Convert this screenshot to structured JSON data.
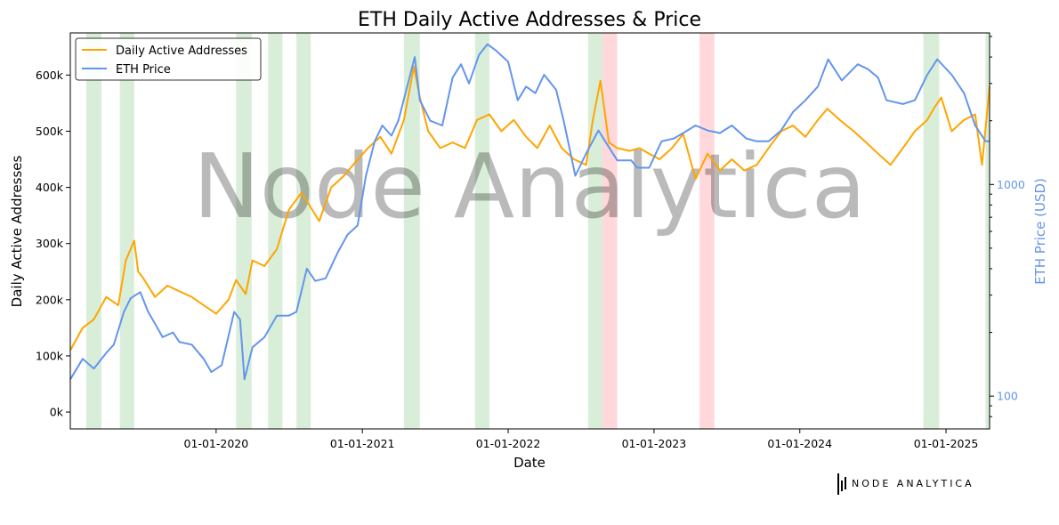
{
  "chart_data": {
    "type": "line",
    "title": "ETH Daily Active Addresses & Price",
    "xlabel": "Date",
    "ylabel": "Daily Active Addresses",
    "y2label": "ETH Price (USD)",
    "y2scale": "log",
    "x_range": [
      "2019-01-01",
      "2025-04-20"
    ],
    "ylim": [
      -30000,
      675000
    ],
    "y2lim": [
      70,
      5200
    ],
    "x_ticks": [
      {
        "date": "2020-01-01",
        "label": "01-01-2020"
      },
      {
        "date": "2021-01-01",
        "label": "01-01-2021"
      },
      {
        "date": "2022-01-01",
        "label": "01-01-2022"
      },
      {
        "date": "2023-01-01",
        "label": "01-01-2023"
      },
      {
        "date": "2024-01-01",
        "label": "01-01-2024"
      },
      {
        "date": "2025-01-01",
        "label": "01-01-2025"
      }
    ],
    "y_ticks": [
      {
        "value": 0,
        "label": "0k"
      },
      {
        "value": 100000,
        "label": "100k"
      },
      {
        "value": 200000,
        "label": "200k"
      },
      {
        "value": 300000,
        "label": "300k"
      },
      {
        "value": 400000,
        "label": "400k"
      },
      {
        "value": 500000,
        "label": "500k"
      },
      {
        "value": 600000,
        "label": "600k"
      }
    ],
    "y2_ticks": [
      {
        "value": 100,
        "label": "100"
      },
      {
        "value": 1000,
        "label": "1000"
      }
    ],
    "grid": false,
    "legend_position": "top-left",
    "watermark": "Node Analytica",
    "colors": {
      "active_addresses": "#FFA500",
      "price": "#6495ED",
      "green_band": "#2e9e2e",
      "red_band": "#ff4d5a"
    },
    "series": [
      {
        "name": "Daily Active Addresses",
        "axis": "left",
        "color": "#FFA500",
        "x": [
          "2019-01-01",
          "2019-02-01",
          "2019-03-01",
          "2019-04-01",
          "2019-05-01",
          "2019-05-20",
          "2019-06-10",
          "2019-06-20",
          "2019-07-01",
          "2019-08-01",
          "2019-09-01",
          "2019-10-01",
          "2019-11-01",
          "2019-12-01",
          "2020-01-01",
          "2020-02-01",
          "2020-02-20",
          "2020-03-15",
          "2020-04-01",
          "2020-05-01",
          "2020-06-01",
          "2020-07-01",
          "2020-08-01",
          "2020-08-20",
          "2020-09-15",
          "2020-10-15",
          "2020-11-15",
          "2020-12-15",
          "2021-01-15",
          "2021-02-15",
          "2021-03-15",
          "2021-04-15",
          "2021-05-10",
          "2021-05-25",
          "2021-06-15",
          "2021-07-15",
          "2021-08-15",
          "2021-09-15",
          "2021-10-15",
          "2021-11-15",
          "2021-12-15",
          "2022-01-15",
          "2022-02-15",
          "2022-03-15",
          "2022-04-15",
          "2022-05-15",
          "2022-06-15",
          "2022-07-15",
          "2022-08-01",
          "2022-08-20",
          "2022-09-10",
          "2022-10-01",
          "2022-11-01",
          "2022-11-25",
          "2022-12-20",
          "2023-01-15",
          "2023-02-15",
          "2023-03-15",
          "2023-04-15",
          "2023-05-15",
          "2023-06-15",
          "2023-07-15",
          "2023-08-15",
          "2023-09-15",
          "2023-10-15",
          "2023-11-15",
          "2023-12-15",
          "2024-01-15",
          "2024-02-15",
          "2024-03-10",
          "2024-04-10",
          "2024-05-15",
          "2024-06-15",
          "2024-07-15",
          "2024-08-15",
          "2024-09-15",
          "2024-10-15",
          "2024-11-15",
          "2024-12-01",
          "2024-12-20",
          "2025-01-15",
          "2025-02-15",
          "2025-03-15",
          "2025-04-01",
          "2025-04-20"
        ],
        "values": [
          110000,
          150000,
          165000,
          205000,
          190000,
          270000,
          305000,
          250000,
          240000,
          205000,
          225000,
          215000,
          205000,
          190000,
          175000,
          200000,
          235000,
          210000,
          270000,
          260000,
          290000,
          360000,
          390000,
          370000,
          340000,
          400000,
          420000,
          445000,
          470000,
          490000,
          460000,
          520000,
          615000,
          560000,
          500000,
          470000,
          480000,
          470000,
          520000,
          530000,
          500000,
          520000,
          490000,
          470000,
          510000,
          470000,
          450000,
          440000,
          520000,
          590000,
          480000,
          470000,
          465000,
          470000,
          460000,
          450000,
          470000,
          495000,
          415000,
          460000,
          430000,
          450000,
          430000,
          440000,
          470000,
          500000,
          510000,
          490000,
          520000,
          540000,
          520000,
          500000,
          480000,
          460000,
          440000,
          470000,
          500000,
          520000,
          540000,
          560000,
          500000,
          520000,
          530000,
          440000,
          580000
        ]
      },
      {
        "name": "ETH Price",
        "axis": "right",
        "color": "#6495ED",
        "x": [
          "2019-01-01",
          "2019-02-01",
          "2019-03-01",
          "2019-04-01",
          "2019-04-20",
          "2019-05-15",
          "2019-06-01",
          "2019-06-25",
          "2019-07-15",
          "2019-08-01",
          "2019-08-20",
          "2019-09-15",
          "2019-10-01",
          "2019-11-01",
          "2019-12-01",
          "2019-12-20",
          "2020-01-15",
          "2020-02-15",
          "2020-03-01",
          "2020-03-12",
          "2020-04-01",
          "2020-05-01",
          "2020-06-01",
          "2020-07-01",
          "2020-07-20",
          "2020-08-15",
          "2020-09-05",
          "2020-10-01",
          "2020-11-01",
          "2020-11-25",
          "2020-12-20",
          "2021-01-10",
          "2021-02-01",
          "2021-02-20",
          "2021-03-15",
          "2021-04-01",
          "2021-05-01",
          "2021-05-12",
          "2021-05-25",
          "2021-06-20",
          "2021-07-20",
          "2021-08-15",
          "2021-09-05",
          "2021-09-25",
          "2021-10-20",
          "2021-11-10",
          "2021-12-01",
          "2022-01-01",
          "2022-01-25",
          "2022-02-15",
          "2022-03-10",
          "2022-04-01",
          "2022-05-01",
          "2022-05-20",
          "2022-06-18",
          "2022-07-15",
          "2022-08-15",
          "2022-09-01",
          "2022-10-01",
          "2022-11-05",
          "2022-11-20",
          "2022-12-20",
          "2023-01-20",
          "2023-02-20",
          "2023-03-15",
          "2023-04-15",
          "2023-05-15",
          "2023-06-15",
          "2023-07-15",
          "2023-08-20",
          "2023-09-15",
          "2023-10-15",
          "2023-11-15",
          "2023-12-15",
          "2024-01-15",
          "2024-02-15",
          "2024-03-12",
          "2024-04-15",
          "2024-05-25",
          "2024-06-20",
          "2024-07-15",
          "2024-08-05",
          "2024-09-15",
          "2024-10-15",
          "2024-11-15",
          "2024-12-10",
          "2025-01-15",
          "2025-02-15",
          "2025-03-15",
          "2025-04-10",
          "2025-04-20"
        ],
        "values": [
          120,
          150,
          135,
          160,
          175,
          250,
          290,
          310,
          250,
          220,
          190,
          200,
          180,
          175,
          150,
          130,
          140,
          250,
          230,
          120,
          170,
          190,
          240,
          240,
          250,
          400,
          350,
          360,
          480,
          580,
          640,
          1100,
          1600,
          1900,
          1700,
          2000,
          3300,
          4000,
          2500,
          2000,
          1900,
          3200,
          3700,
          3000,
          4100,
          4600,
          4300,
          3800,
          2500,
          2900,
          2700,
          3300,
          2800,
          2000,
          1100,
          1400,
          1800,
          1600,
          1300,
          1300,
          1200,
          1200,
          1600,
          1650,
          1750,
          1900,
          1800,
          1750,
          1900,
          1650,
          1600,
          1600,
          1800,
          2200,
          2500,
          2900,
          3900,
          3100,
          3700,
          3500,
          3200,
          2500,
          2400,
          2500,
          3300,
          3900,
          3300,
          2700,
          1900,
          1600,
          1600
        ]
      }
    ],
    "shaded_regions": [
      {
        "start": "2019-02-10",
        "end": "2019-03-20",
        "kind": "green"
      },
      {
        "start": "2019-05-05",
        "end": "2019-06-10",
        "kind": "green"
      },
      {
        "start": "2020-02-20",
        "end": "2020-03-30",
        "kind": "green"
      },
      {
        "start": "2020-05-10",
        "end": "2020-06-15",
        "kind": "green"
      },
      {
        "start": "2020-07-20",
        "end": "2020-08-25",
        "kind": "green"
      },
      {
        "start": "2021-04-15",
        "end": "2021-05-25",
        "kind": "green"
      },
      {
        "start": "2021-10-10",
        "end": "2021-11-15",
        "kind": "green"
      },
      {
        "start": "2022-07-20",
        "end": "2022-08-25",
        "kind": "green"
      },
      {
        "start": "2022-08-25",
        "end": "2022-10-01",
        "kind": "red"
      },
      {
        "start": "2023-04-25",
        "end": "2023-06-01",
        "kind": "red"
      },
      {
        "start": "2024-11-05",
        "end": "2024-12-15",
        "kind": "green"
      },
      {
        "start": "2025-04-10",
        "end": "2025-04-20",
        "kind": "green"
      }
    ]
  },
  "branding": {
    "logo_text": "NODE ANALYTICA"
  }
}
